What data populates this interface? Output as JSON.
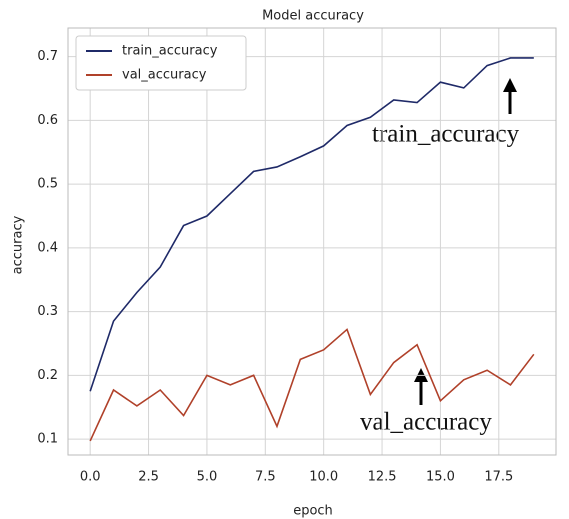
{
  "chart_data": {
    "type": "line",
    "title": "Model accuracy",
    "xlabel": "epoch",
    "ylabel": "accuracy",
    "x": [
      0,
      1,
      2,
      3,
      4,
      5,
      6,
      7,
      8,
      9,
      10,
      11,
      12,
      13,
      14,
      15,
      16,
      17,
      18,
      19
    ],
    "series": [
      {
        "name": "train_accuracy",
        "color": "#1f2a68",
        "values": [
          0.175,
          0.285,
          0.33,
          0.37,
          0.435,
          0.45,
          0.485,
          0.52,
          0.527,
          0.543,
          0.56,
          0.592,
          0.605,
          0.632,
          0.628,
          0.66,
          0.651,
          0.686,
          0.698,
          0.698
        ]
      },
      {
        "name": "val_accuracy",
        "color": "#b0412a",
        "values": [
          0.097,
          0.177,
          0.152,
          0.177,
          0.137,
          0.2,
          0.185,
          0.2,
          0.12,
          0.225,
          0.24,
          0.272,
          0.17,
          0.22,
          0.248,
          0.16,
          0.193,
          0.208,
          0.185,
          0.233
        ]
      }
    ],
    "xlim": [
      -0.95,
      19.95
    ],
    "ylim": [
      0.075,
      0.745
    ],
    "xticks": [
      {
        "value": 0,
        "label": "0.0"
      },
      {
        "value": 2.5,
        "label": "2.5"
      },
      {
        "value": 5,
        "label": "5.0"
      },
      {
        "value": 7.5,
        "label": "7.5"
      },
      {
        "value": 10,
        "label": "10.0"
      },
      {
        "value": 12.5,
        "label": "12.5"
      },
      {
        "value": 15,
        "label": "15.0"
      },
      {
        "value": 17.5,
        "label": "17.5"
      }
    ],
    "yticks": [
      0.1,
      0.2,
      0.3,
      0.4,
      0.5,
      0.6,
      0.7
    ],
    "grid": true,
    "legend": "upper left",
    "annotations": [
      "train_accuracy",
      "val_accuracy"
    ]
  }
}
